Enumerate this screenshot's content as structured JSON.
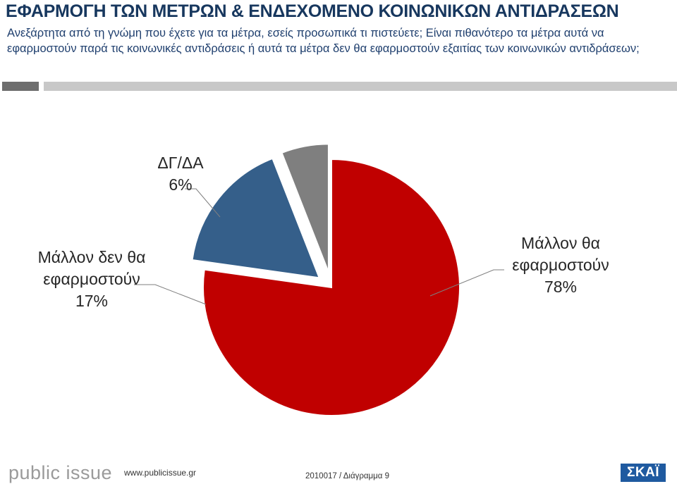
{
  "header": {
    "title": "ΕΦΑΡΜΟΓΗ ΤΩΝ ΜΕΤΡΩΝ & ΕΝΔΕΧΟΜΕΝΟ ΚΟΙΝΩΝΙΚΩΝ ΑΝΤΙΔΡΑΣΕΩΝ",
    "question": "Ανεξάρτητα από τη γνώμη που έχετε για τα μέτρα, εσείς προσωπικά τι πιστεύετε; Είναι πιθανότερο τα μέτρα αυτά να εφαρμοστούν παρά τις κοινωνικές αντιδράσεις ή αυτά τα μέτρα δεν θα εφαρμοστούν εξαιτίας των κοινωνικών αντιδράσεων;"
  },
  "chart_data": {
    "type": "pie",
    "slices": [
      {
        "label": "Μάλλον θα εφαρμοστούν",
        "value": 78,
        "value_label": "78%",
        "color": "#c00000",
        "exploded": false
      },
      {
        "label": "Μάλλον δεν θα εφαρμοστούν",
        "value": 17,
        "value_label": "17%",
        "color": "#355f8a",
        "exploded": true
      },
      {
        "label": "ΔΓ/ΔΑ",
        "value": 6,
        "value_label": "6%",
        "color": "#7f7f7f",
        "exploded": true
      }
    ],
    "start": "top, clockwise",
    "legend": "none, labels beside slices with leader lines"
  },
  "footer": {
    "logo": "public issue",
    "url": "www.publicissue.gr",
    "code": "2010017 / Διάγραμμα 9",
    "brand": "ΣΚΑΪ"
  },
  "colors": {
    "title": "#17375e",
    "accent_dark_bar": "#6e6e6e",
    "accent_light_bar": "#c8c8c8",
    "brand": "#1f5aa0"
  }
}
